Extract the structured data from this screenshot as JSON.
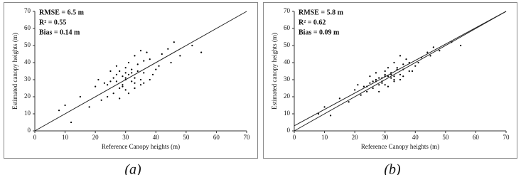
{
  "chart_data": [
    {
      "type": "scatter",
      "panel_label": "(a)",
      "annotations": [
        "RMSE = 6.5 m",
        "R² = 0.55",
        "Bias = 0.14 m"
      ],
      "xlabel": "Reference Canopy heights (m)",
      "ylabel": "Estimated canopy heights (m)",
      "color": "#000000",
      "xlim": [
        0,
        70
      ],
      "ylim": [
        0,
        70
      ],
      "xticks": [
        0,
        10,
        20,
        30,
        40,
        50,
        60,
        70
      ],
      "yticks": [
        0,
        10,
        20,
        30,
        40,
        50,
        60,
        70
      ],
      "x": [
        30,
        28,
        32,
        35,
        25,
        27,
        33,
        38,
        22,
        30,
        29,
        31,
        34,
        26,
        36,
        40,
        20,
        24,
        31,
        33,
        28,
        35,
        42,
        18,
        45,
        30,
        27,
        32,
        37,
        23,
        29,
        34,
        39,
        26,
        31,
        44,
        15,
        48,
        21,
        33,
        30,
        36,
        28,
        25,
        41,
        32,
        29,
        35,
        38,
        24,
        10,
        52,
        12,
        46,
        55,
        8,
        30,
        33,
        27,
        36
      ],
      "y": [
        31,
        25,
        36,
        30,
        29,
        33,
        28,
        42,
        18,
        37,
        27,
        22,
        39,
        31,
        34,
        36,
        26,
        20,
        33,
        44,
        35,
        27,
        45,
        14,
        40,
        24,
        38,
        29,
        46,
        28,
        32,
        35,
        33,
        22,
        40,
        48,
        20,
        44,
        30,
        25,
        30,
        41,
        19,
        35,
        38,
        34,
        26,
        47,
        30,
        27,
        15,
        50,
        5,
        52,
        46,
        12,
        34,
        31,
        29,
        28
      ],
      "lines": [
        {
          "x": [
            0,
            70
          ],
          "y": [
            0,
            70
          ]
        }
      ]
    },
    {
      "type": "scatter",
      "panel_label": "(b)",
      "annotations": [
        "RMSE = 5.8 m",
        "R² = 0.62",
        "Bias = 0.09 m"
      ],
      "xlabel": "Reference Canopy heights (m)",
      "ylabel": "Estimated canopy heights (m)",
      "color": "#000000",
      "xlim": [
        0,
        70
      ],
      "ylim": [
        0,
        70
      ],
      "xticks": [
        0,
        10,
        20,
        30,
        40,
        50,
        60,
        70
      ],
      "yticks": [
        0,
        10,
        20,
        30,
        40,
        50,
        60,
        70
      ],
      "x": [
        30,
        28,
        32,
        35,
        25,
        27,
        33,
        38,
        22,
        30,
        29,
        31,
        34,
        26,
        36,
        40,
        20,
        24,
        31,
        33,
        28,
        35,
        42,
        18,
        45,
        30,
        27,
        32,
        37,
        23,
        29,
        34,
        39,
        26,
        31,
        44,
        15,
        48,
        21,
        33,
        30,
        36,
        28,
        25,
        41,
        32,
        29,
        35,
        38,
        24,
        10,
        52,
        12,
        46,
        55,
        8,
        30,
        33,
        27,
        36
      ],
      "y": [
        32,
        27,
        34,
        33,
        28,
        30,
        30,
        40,
        21,
        35,
        29,
        26,
        37,
        29,
        36,
        38,
        24,
        23,
        32,
        40,
        31,
        30,
        43,
        17,
        44,
        27,
        34,
        31,
        42,
        26,
        31,
        36,
        35,
        25,
        37,
        46,
        19,
        47,
        27,
        29,
        32,
        39,
        23,
        32,
        40,
        33,
        28,
        44,
        35,
        26,
        14,
        52,
        9,
        49,
        50,
        10,
        33,
        32,
        29,
        32
      ],
      "lines": [
        {
          "x": [
            0,
            70
          ],
          "y": [
            0,
            70
          ]
        },
        {
          "x": [
            0,
            70
          ],
          "y": [
            3,
            70
          ]
        }
      ]
    }
  ]
}
